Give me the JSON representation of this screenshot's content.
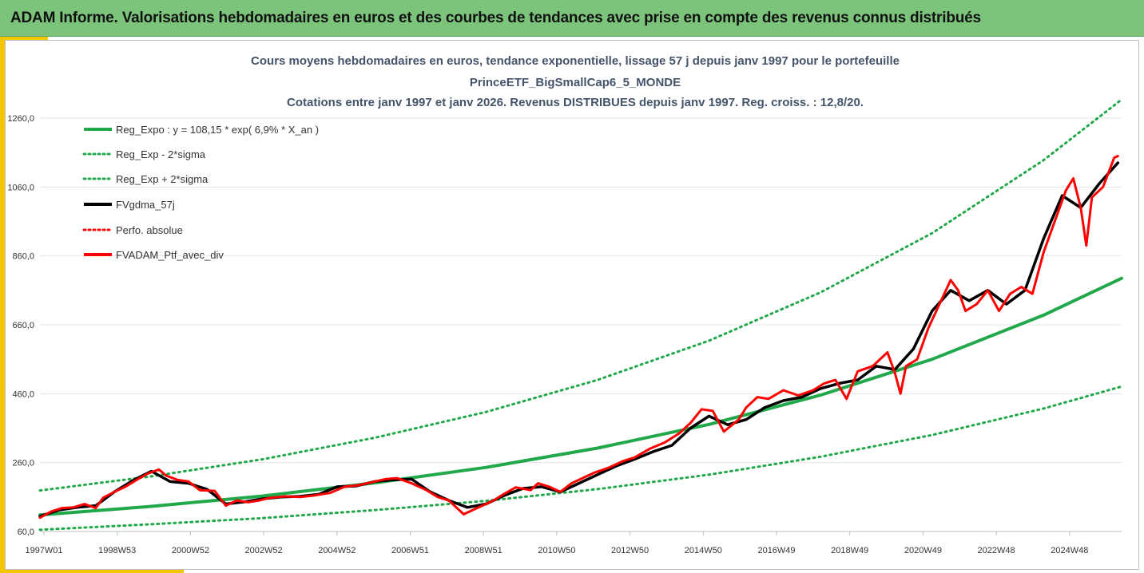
{
  "banner": {
    "title": "ADAM Informe. Valorisations hebdomadaires en euros et des courbes de tendances avec prise en compte des revenus connus distribués"
  },
  "chart_data": {
    "type": "line",
    "title_lines": [
      "Cours moyens hebdomadaires  en euros, tendance exponentielle, lissage 57 j depuis janv 1997 pour le portefeuille",
      "PrinceETF_BigSmallCap6_5_MONDE",
      "Cotations entre janv 1997 et janv 2026. Revenus DISTRIBUES depuis janv 1997. Reg. croiss. : 12,8/20."
    ],
    "x_tick_labels": [
      "1997W01",
      "1998W53",
      "2000W52",
      "2002W52",
      "2004W52",
      "2006W51",
      "2008W51",
      "2010W50",
      "2012W50",
      "2014W50",
      "2016W49",
      "2018W49",
      "2020W49",
      "2022W48",
      "2024W48"
    ],
    "x_range": [
      1997.0,
      2026.1
    ],
    "y_tick_values": [
      60,
      260,
      460,
      660,
      860,
      1060,
      1260
    ],
    "y_tick_labels": [
      "60,0",
      "260,0",
      "460,0",
      "660,0",
      "860,0",
      "1060,0",
      "1260,0"
    ],
    "ylim": [
      60,
      1260
    ],
    "grid": "horizontal",
    "legend_position": "top-left",
    "regression": {
      "a": 108.15,
      "growth_pct": 6.9
    },
    "series": [
      {
        "name": "Reg_Expo : y = 108,15 * exp( 6,9% *  X_an )",
        "color": "#21a84a",
        "style": "solid",
        "x": [
          1997.0,
          2000.0,
          2003.0,
          2006.0,
          2009.0,
          2012.0,
          2015.0,
          2018.0,
          2021.0,
          2024.0,
          2026.1
        ],
        "values": [
          108,
          133,
          163,
          201,
          246,
          302,
          371,
          456,
          560,
          688,
          795
        ]
      },
      {
        "name": "Reg_Exp - 2*sigma",
        "color": "#21a84a",
        "style": "dotted",
        "x": [
          1997.0,
          2000.0,
          2003.0,
          2006.0,
          2009.0,
          2012.0,
          2015.0,
          2018.0,
          2021.0,
          2024.0,
          2026.1
        ],
        "values": [
          65,
          81,
          99,
          122,
          149,
          183,
          225,
          277,
          340,
          417,
          481
        ]
      },
      {
        "name": "Reg_Exp + 2*sigma",
        "color": "#21a84a",
        "style": "dotted",
        "x": [
          1997.0,
          2000.0,
          2003.0,
          2006.0,
          2009.0,
          2012.0,
          2015.0,
          2018.0,
          2021.0,
          2024.0,
          2026.1
        ],
        "values": [
          179,
          220,
          270,
          332,
          407,
          500,
          614,
          754,
          926,
          1138,
          1314
        ]
      },
      {
        "name": "FVgdma_57j",
        "color": "#000000",
        "style": "solid",
        "x": [
          1997.0,
          1997.5,
          1998.0,
          1998.5,
          1999.0,
          1999.5,
          2000.0,
          2000.5,
          2001.0,
          2001.5,
          2002.0,
          2002.5,
          2003.0,
          2003.5,
          2004.0,
          2004.5,
          2005.0,
          2005.5,
          2006.0,
          2006.5,
          2007.0,
          2007.5,
          2008.0,
          2008.5,
          2009.0,
          2009.5,
          2010.0,
          2010.5,
          2011.0,
          2011.5,
          2012.0,
          2012.5,
          2013.0,
          2013.5,
          2014.0,
          2014.5,
          2015.0,
          2015.5,
          2016.0,
          2016.5,
          2017.0,
          2017.5,
          2018.0,
          2018.5,
          2019.0,
          2019.5,
          2020.0,
          2020.5,
          2021.0,
          2021.5,
          2022.0,
          2022.5,
          2023.0,
          2023.5,
          2024.0,
          2024.5,
          2025.0,
          2025.5,
          2026.0
        ],
        "values": [
          104,
          122,
          130,
          135,
          175,
          208,
          235,
          205,
          200,
          182,
          140,
          146,
          155,
          160,
          162,
          168,
          190,
          192,
          205,
          210,
          212,
          175,
          150,
          130,
          140,
          165,
          185,
          190,
          175,
          200,
          225,
          250,
          270,
          292,
          310,
          360,
          395,
          370,
          385,
          420,
          440,
          450,
          475,
          490,
          500,
          540,
          530,
          590,
          700,
          760,
          730,
          760,
          720,
          760,
          910,
          1035,
          1000,
          1070,
          1130
        ]
      },
      {
        "name": "Perfo. absolue",
        "color": "#ff0000",
        "style": "dotted",
        "x": [],
        "values": []
      },
      {
        "name": "FVADAM_Ptf_avec_div",
        "color": "#ff0000",
        "style": "solid",
        "x": [
          1997.0,
          1997.3,
          1997.6,
          1997.9,
          1998.2,
          1998.5,
          1998.7,
          1999.0,
          1999.3,
          1999.6,
          1999.9,
          2000.2,
          2000.4,
          2000.7,
          2001.0,
          2001.3,
          2001.7,
          2002.0,
          2002.3,
          2002.6,
          2002.9,
          2003.2,
          2003.6,
          2004.0,
          2004.4,
          2004.8,
          2005.2,
          2005.6,
          2006.0,
          2006.3,
          2006.6,
          2007.0,
          2007.4,
          2007.7,
          2008.0,
          2008.4,
          2008.7,
          2009.0,
          2009.2,
          2009.5,
          2009.8,
          2010.2,
          2010.4,
          2010.7,
          2011.0,
          2011.3,
          2011.6,
          2011.9,
          2012.3,
          2012.7,
          2013.0,
          2013.4,
          2013.8,
          2014.2,
          2014.5,
          2014.8,
          2015.1,
          2015.4,
          2015.8,
          2016.0,
          2016.3,
          2016.6,
          2017.0,
          2017.4,
          2017.8,
          2018.1,
          2018.4,
          2018.7,
          2019.0,
          2019.4,
          2019.8,
          2020.0,
          2020.15,
          2020.3,
          2020.6,
          2020.9,
          2021.2,
          2021.5,
          2021.7,
          2021.9,
          2022.2,
          2022.5,
          2022.8,
          2023.1,
          2023.4,
          2023.7,
          2024.0,
          2024.3,
          2024.6,
          2024.8,
          2025.0,
          2025.15,
          2025.3,
          2025.6,
          2025.9,
          2026.0
        ],
        "values": [
          100,
          118,
          128,
          130,
          140,
          128,
          158,
          175,
          190,
          210,
          228,
          240,
          222,
          210,
          205,
          180,
          178,
          135,
          150,
          145,
          150,
          158,
          162,
          160,
          165,
          172,
          190,
          195,
          205,
          212,
          215,
          200,
          180,
          160,
          150,
          110,
          125,
          140,
          150,
          170,
          188,
          180,
          200,
          190,
          175,
          200,
          215,
          230,
          245,
          265,
          275,
          300,
          318,
          345,
          375,
          415,
          410,
          350,
          385,
          420,
          450,
          445,
          470,
          455,
          470,
          490,
          500,
          445,
          525,
          540,
          580,
          520,
          460,
          540,
          560,
          650,
          720,
          790,
          760,
          700,
          720,
          760,
          700,
          750,
          770,
          750,
          870,
          960,
          1050,
          1085,
          1000,
          890,
          1030,
          1060,
          1145,
          1150
        ]
      }
    ]
  }
}
